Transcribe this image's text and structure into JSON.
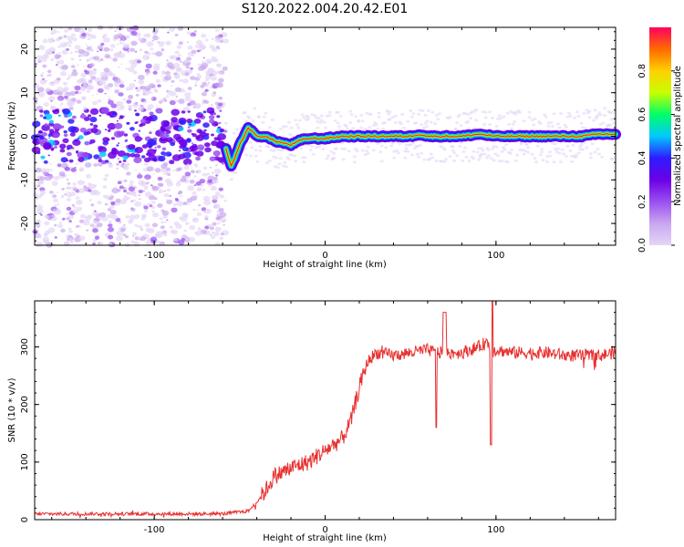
{
  "figure_title": "S120.2022.004.20.42.E01",
  "colors": {
    "snr_line": "#e83030",
    "ridge_core": "#e83030",
    "colormap": [
      "#e4d6f6",
      "#c9a6f0",
      "#9a4ff0",
      "#6c00e6",
      "#2f1bff",
      "#00c9ff",
      "#00ff66",
      "#c8ff00",
      "#ffd000",
      "#ff6a00",
      "#ff0060"
    ]
  },
  "chart_data": [
    {
      "type": "heatmap",
      "xlabel": "Height of straight line (km)",
      "ylabel": "Frequency (Hz)",
      "xlim": [
        -170,
        170
      ],
      "ylim": [
        -25,
        25
      ],
      "x_ticks": [
        -100,
        0,
        100
      ],
      "y_ticks": [
        -20,
        -10,
        0,
        10,
        20
      ],
      "colorbar": {
        "label": "Normalized spectral amplitude",
        "range": [
          0,
          1
        ],
        "ticks": [
          0.0,
          0.2,
          0.4,
          0.6,
          0.8
        ]
      },
      "ridge": {
        "description_points_x": [
          -170,
          -60,
          -55,
          -50,
          -45,
          -40,
          -35,
          -30,
          -25,
          -20,
          -15,
          -10,
          -5,
          0,
          10,
          20,
          30,
          40,
          50,
          55,
          60,
          70,
          80,
          90,
          100,
          110,
          120,
          130,
          140,
          150,
          160,
          170
        ],
        "frequency_hz": [
          0,
          0,
          -7,
          -2,
          2,
          0,
          0,
          -1,
          -1.5,
          -2,
          -1,
          -0.5,
          -0.5,
          -0.5,
          0,
          0,
          0,
          0,
          0,
          0.5,
          0,
          0,
          0,
          0.5,
          0,
          0,
          0,
          0,
          0,
          0,
          0.5,
          0.5
        ]
      }
    },
    {
      "type": "line",
      "xlabel": "Height of straight line (km)",
      "ylabel": "SNR (10 * v/v)",
      "xlim": [
        -170,
        170
      ],
      "ylim": [
        0,
        380
      ],
      "x_ticks": [
        -100,
        0,
        100
      ],
      "y_ticks": [
        0,
        100,
        200,
        300
      ],
      "series": [
        {
          "x": [
            -170,
            -60,
            -45,
            -40,
            -35,
            -30,
            -20,
            -10,
            0,
            10,
            15,
            20,
            25,
            30,
            40,
            50,
            60,
            65,
            70,
            80,
            90,
            95,
            97,
            100,
            110,
            120,
            130,
            140,
            150,
            160,
            170
          ],
          "y": [
            10,
            10,
            15,
            30,
            50,
            75,
            90,
            100,
            120,
            140,
            170,
            230,
            275,
            290,
            285,
            290,
            295,
            290,
            290,
            290,
            300,
            310,
            290,
            295,
            290,
            290,
            290,
            285,
            285,
            285,
            290
          ]
        }
      ]
    }
  ]
}
